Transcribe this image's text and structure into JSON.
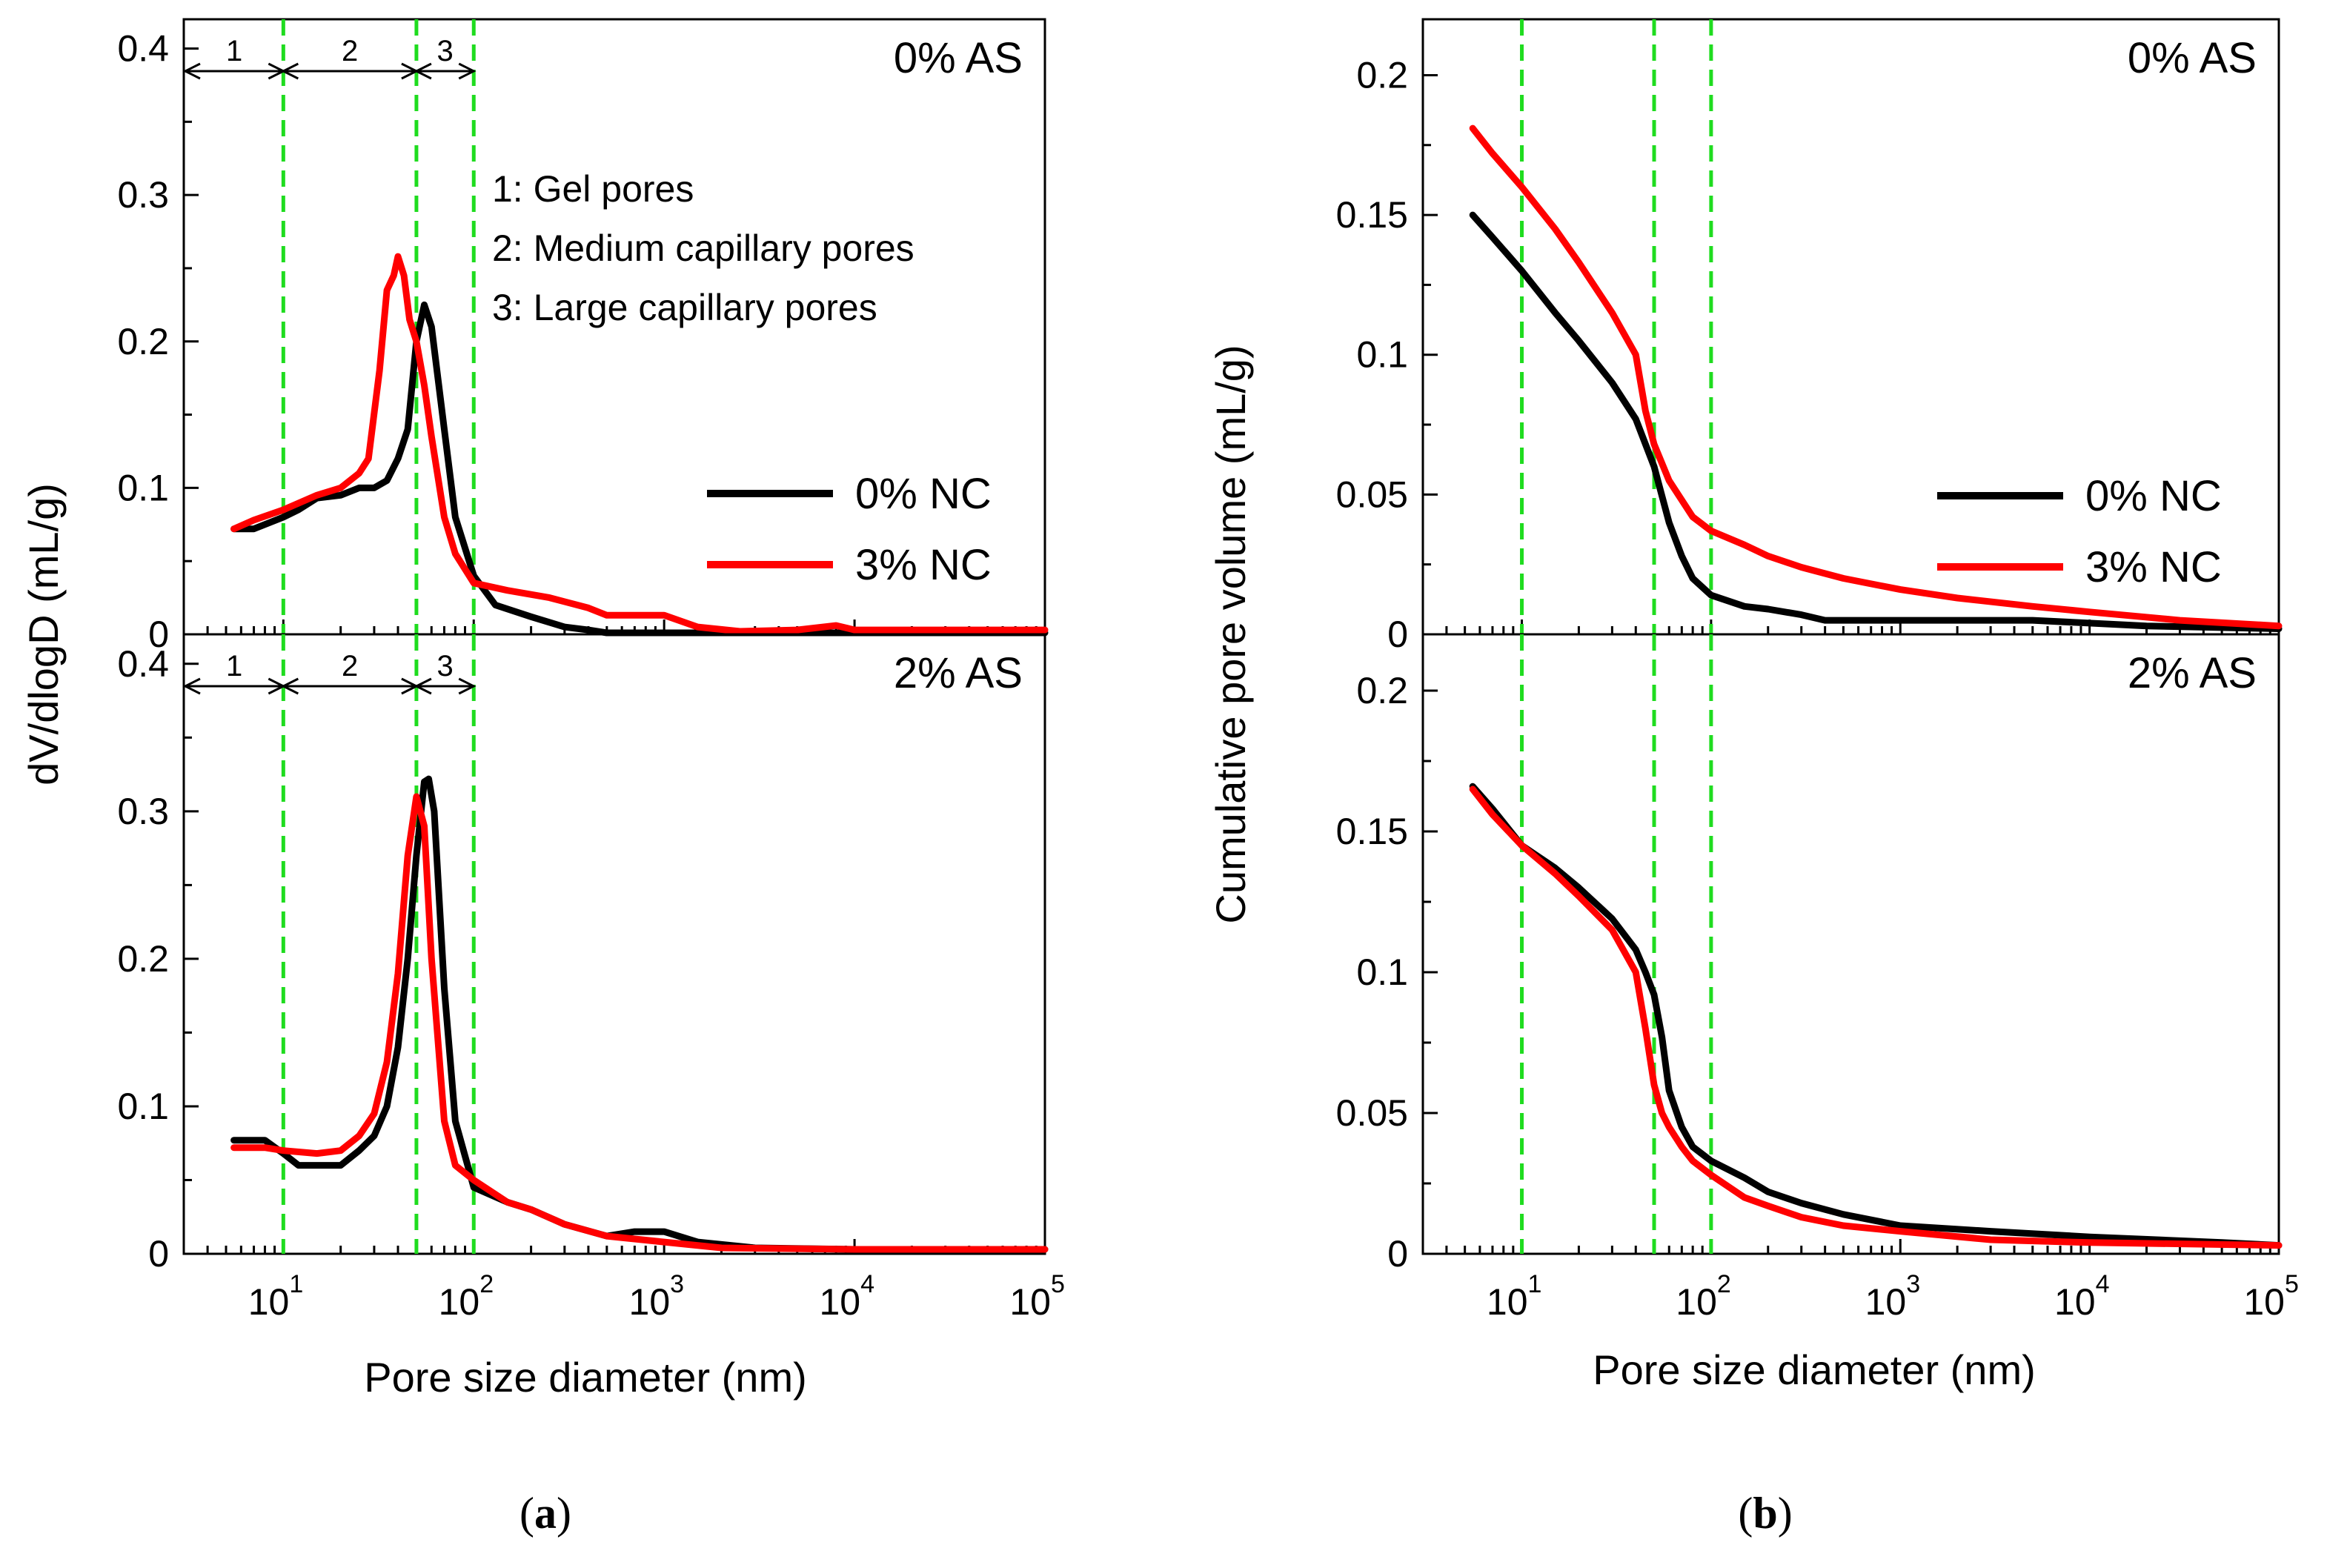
{
  "figure": {
    "panel_labels": [
      {
        "open": "(",
        "letter": "a",
        "close": ")"
      },
      {
        "open": "(",
        "letter": "b",
        "close": ")"
      }
    ],
    "colors": {
      "nc0": "#000000",
      "nc3": "#ff0000",
      "guide": "#1fdc1f"
    }
  },
  "chart_data": [
    {
      "id": "a-top",
      "type": "line",
      "panel": "a",
      "title": "0% AS",
      "ylabel": "dV/dlogD (mL/g)",
      "xlabel": "",
      "xscale": "log",
      "xlim": [
        3,
        100000
      ],
      "ylim": [
        0,
        0.42
      ],
      "yticks": [
        0,
        0.1,
        0.2,
        0.3,
        0.4
      ],
      "ytick_labels": [
        "0",
        "0.1",
        "0.2",
        "0.3",
        "0.4"
      ],
      "xticks": [
        10,
        100,
        1000,
        10000,
        100000
      ],
      "xtick_labels": [],
      "vlines": [
        10,
        50,
        100
      ],
      "legend": {
        "position": "right",
        "entries": [
          "0% NC",
          "3% NC"
        ]
      },
      "regions": [
        {
          "label": "1",
          "from": 3,
          "to": 10
        },
        {
          "label": "2",
          "from": 10,
          "to": 50
        },
        {
          "label": "3",
          "from": 50,
          "to": 100
        }
      ],
      "annotations": [
        "1: Gel pores",
        "2: Medium capillary pores",
        "3: Large capillary pores"
      ],
      "series": [
        {
          "name": "0% NC",
          "color": "#000000",
          "x": [
            5.5,
            7,
            10,
            12,
            15,
            20,
            25,
            30,
            35,
            40,
            45,
            50,
            55,
            60,
            70,
            80,
            100,
            130,
            200,
            300,
            400,
            500,
            1000,
            100000
          ],
          "y": [
            0.072,
            0.072,
            0.08,
            0.085,
            0.093,
            0.095,
            0.1,
            0.1,
            0.105,
            0.12,
            0.14,
            0.2,
            0.225,
            0.21,
            0.14,
            0.08,
            0.04,
            0.02,
            0.012,
            0.005,
            0.003,
            0.001,
            0.001,
            0.001
          ]
        },
        {
          "name": "3% NC",
          "color": "#ff0000",
          "x": [
            5.5,
            7,
            10,
            15,
            20,
            25,
            28,
            32,
            35,
            38,
            40,
            43,
            46,
            50,
            55,
            60,
            70,
            80,
            100,
            150,
            250,
            400,
            500,
            1000,
            1500,
            2500,
            5000,
            8000,
            10000,
            100000
          ],
          "y": [
            0.072,
            0.078,
            0.085,
            0.095,
            0.1,
            0.11,
            0.12,
            0.18,
            0.235,
            0.245,
            0.258,
            0.245,
            0.215,
            0.2,
            0.17,
            0.135,
            0.08,
            0.055,
            0.035,
            0.03,
            0.025,
            0.018,
            0.013,
            0.013,
            0.005,
            0.002,
            0.003,
            0.006,
            0.003,
            0.003
          ]
        }
      ]
    },
    {
      "id": "a-bottom",
      "type": "line",
      "panel": "a",
      "title": "2% AS",
      "ylabel": "dV/dlogD (mL/g)",
      "xlabel": "Pore size diameter (nm)",
      "xscale": "log",
      "xlim": [
        3,
        100000
      ],
      "ylim": [
        0,
        0.42
      ],
      "yticks": [
        0,
        0.1,
        0.2,
        0.3,
        0.4
      ],
      "ytick_labels": [
        "0",
        "0.1",
        "0.2",
        "0.3",
        "0.4"
      ],
      "xticks": [
        10,
        100,
        1000,
        10000,
        100000
      ],
      "xtick_labels": [
        "10",
        "1",
        "10",
        "2",
        "10",
        "3",
        "10",
        "4",
        "10",
        "5"
      ],
      "vlines": [
        10,
        50,
        100
      ],
      "regions": [
        {
          "label": "1",
          "from": 3,
          "to": 10
        },
        {
          "label": "2",
          "from": 10,
          "to": 50
        },
        {
          "label": "3",
          "from": 50,
          "to": 100
        }
      ],
      "series": [
        {
          "name": "0% NC",
          "color": "#000000",
          "x": [
            5.5,
            8,
            10,
            12,
            15,
            20,
            25,
            30,
            35,
            40,
            45,
            50,
            55,
            58,
            62,
            70,
            80,
            100,
            150,
            200,
            300,
            500,
            700,
            1000,
            1500,
            3000,
            10000,
            100000
          ],
          "y": [
            0.077,
            0.077,
            0.068,
            0.06,
            0.06,
            0.06,
            0.07,
            0.08,
            0.1,
            0.14,
            0.2,
            0.27,
            0.32,
            0.322,
            0.3,
            0.18,
            0.09,
            0.045,
            0.035,
            0.03,
            0.02,
            0.012,
            0.015,
            0.015,
            0.008,
            0.004,
            0.003,
            0.003
          ]
        },
        {
          "name": "3% NC",
          "color": "#ff0000",
          "x": [
            5.5,
            8,
            10,
            15,
            20,
            25,
            30,
            35,
            40,
            45,
            50,
            55,
            60,
            70,
            80,
            100,
            150,
            200,
            300,
            500,
            1000,
            2000,
            10000,
            100000
          ],
          "y": [
            0.072,
            0.072,
            0.07,
            0.068,
            0.07,
            0.08,
            0.095,
            0.13,
            0.19,
            0.27,
            0.31,
            0.29,
            0.2,
            0.09,
            0.06,
            0.05,
            0.035,
            0.03,
            0.02,
            0.012,
            0.008,
            0.004,
            0.003,
            0.003
          ]
        }
      ]
    },
    {
      "id": "b-top",
      "type": "line",
      "panel": "b",
      "title": "0% AS",
      "ylabel": "Cumulative pore volume (mL/g)",
      "xlabel": "",
      "xscale": "log",
      "xlim": [
        3,
        100000
      ],
      "ylim": [
        0,
        0.22
      ],
      "yticks": [
        0,
        0.05,
        0.1,
        0.15,
        0.2
      ],
      "ytick_labels": [
        "0",
        "0.05",
        "0.1",
        "0.15",
        "0.2"
      ],
      "xticks": [
        10,
        100,
        1000,
        10000,
        100000
      ],
      "xtick_labels": [],
      "vlines": [
        10,
        50,
        100
      ],
      "legend": {
        "position": "right",
        "entries": [
          "0% NC",
          "3% NC"
        ]
      },
      "series": [
        {
          "name": "0% NC",
          "color": "#000000",
          "x": [
            5.5,
            7,
            10,
            15,
            20,
            30,
            40,
            50,
            60,
            70,
            80,
            100,
            150,
            200,
            300,
            400,
            1000,
            5000,
            10000,
            20000,
            100000
          ],
          "y": [
            0.15,
            0.142,
            0.13,
            0.115,
            0.105,
            0.09,
            0.077,
            0.06,
            0.04,
            0.028,
            0.02,
            0.014,
            0.01,
            0.009,
            0.007,
            0.005,
            0.005,
            0.005,
            0.004,
            0.003,
            0.002
          ]
        },
        {
          "name": "3% NC",
          "color": "#ff0000",
          "x": [
            5.5,
            7,
            10,
            15,
            20,
            30,
            40,
            45,
            50,
            60,
            80,
            100,
            150,
            200,
            300,
            500,
            1000,
            2000,
            5000,
            10000,
            30000,
            100000
          ],
          "y": [
            0.181,
            0.172,
            0.16,
            0.145,
            0.133,
            0.115,
            0.1,
            0.08,
            0.068,
            0.055,
            0.042,
            0.037,
            0.032,
            0.028,
            0.024,
            0.02,
            0.016,
            0.013,
            0.01,
            0.008,
            0.005,
            0.003
          ]
        }
      ]
    },
    {
      "id": "b-bottom",
      "type": "line",
      "panel": "b",
      "title": "2% AS",
      "ylabel": "Cumulative pore volume (mL/g)",
      "xlabel": "Pore size diameter (nm)",
      "xscale": "log",
      "xlim": [
        3,
        100000
      ],
      "ylim": [
        0,
        0.22
      ],
      "yticks": [
        0,
        0.05,
        0.1,
        0.15,
        0.2
      ],
      "ytick_labels": [
        "0",
        "0.05",
        "0.1",
        "0.15",
        "0.2"
      ],
      "xticks": [
        10,
        100,
        1000,
        10000,
        100000
      ],
      "xtick_labels": [
        "10",
        "1",
        "10",
        "2",
        "10",
        "3",
        "10",
        "4",
        "10",
        "5"
      ],
      "vlines": [
        10,
        50,
        100
      ],
      "series": [
        {
          "name": "0% NC",
          "color": "#000000",
          "x": [
            5.5,
            7,
            10,
            15,
            20,
            30,
            40,
            45,
            50,
            55,
            60,
            70,
            80,
            100,
            150,
            200,
            300,
            500,
            1000,
            3000,
            10000,
            50000,
            100000
          ],
          "y": [
            0.166,
            0.158,
            0.145,
            0.137,
            0.13,
            0.119,
            0.108,
            0.1,
            0.092,
            0.077,
            0.058,
            0.045,
            0.038,
            0.033,
            0.027,
            0.022,
            0.018,
            0.014,
            0.01,
            0.008,
            0.006,
            0.004,
            0.003
          ]
        },
        {
          "name": "3% NC",
          "color": "#ff0000",
          "x": [
            5.5,
            7,
            10,
            15,
            20,
            30,
            40,
            45,
            50,
            55,
            60,
            70,
            80,
            100,
            150,
            200,
            300,
            500,
            1000,
            3000,
            10000,
            100000
          ],
          "y": [
            0.165,
            0.156,
            0.145,
            0.135,
            0.127,
            0.115,
            0.1,
            0.08,
            0.06,
            0.05,
            0.045,
            0.038,
            0.033,
            0.028,
            0.02,
            0.017,
            0.013,
            0.01,
            0.008,
            0.005,
            0.004,
            0.003
          ]
        }
      ]
    }
  ]
}
